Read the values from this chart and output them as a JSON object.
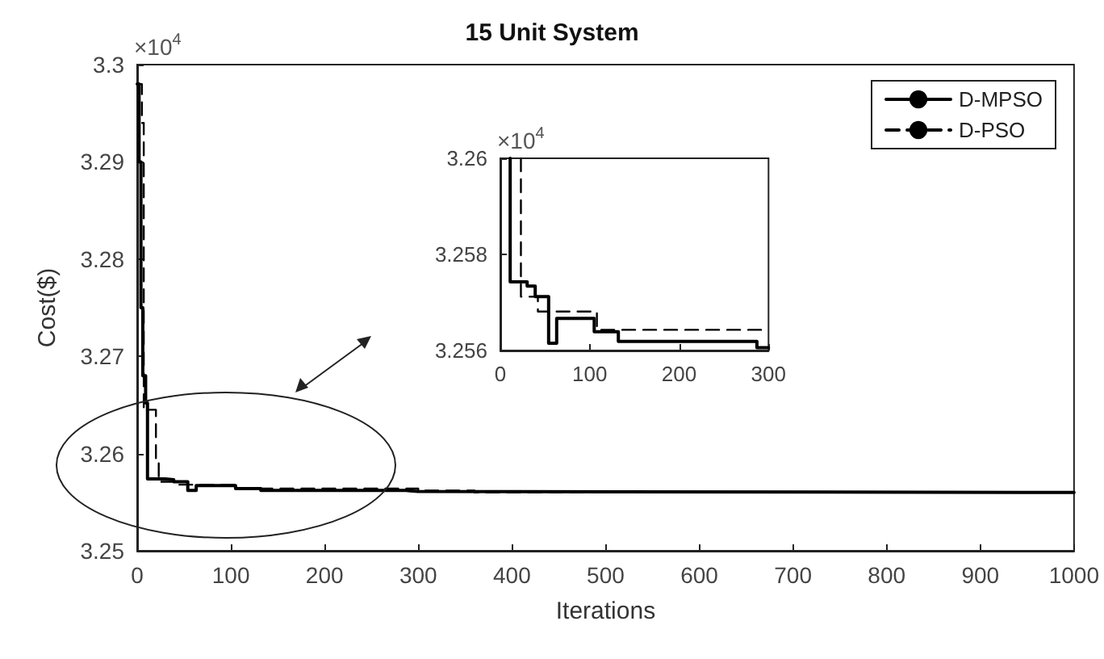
{
  "chart_data": [
    {
      "type": "step",
      "title": "15 Unit System",
      "xlabel": "Iterations",
      "ylabel": "Cost($)",
      "xlim": [
        0,
        1000
      ],
      "xticks": [
        0,
        100,
        200,
        300,
        400,
        500,
        600,
        700,
        800,
        900,
        1000
      ],
      "ylim": [
        3.25,
        3.3
      ],
      "yticks": [
        3.25,
        3.26,
        3.27,
        3.28,
        3.29,
        3.3
      ],
      "annotations": [
        "×10$^{4}$"
      ],
      "legend": "top right",
      "grid": false,
      "series": [
        {
          "name": "D-MPSO",
          "color": "#000000",
          "line_style": "solid",
          "x": [
            0,
            2,
            4,
            6,
            9,
            11,
            30,
            39,
            54,
            63,
            105,
            132,
            287,
            300,
            1000
          ],
          "values": [
            3.298,
            3.29,
            3.275,
            3.268,
            3.2652,
            3.2574,
            3.2573,
            3.2571,
            3.2562,
            3.2567,
            3.2564,
            3.2562,
            3.2561,
            3.256,
            3.256
          ]
        },
        {
          "name": "D-PSO",
          "color": "#000000",
          "line_style": "dashed",
          "x": [
            2,
            5,
            7,
            20,
            23,
            42,
            108,
            300,
            360,
            1000
          ],
          "values": [
            3.298,
            3.294,
            3.2645,
            3.2595,
            3.2571,
            3.2568,
            3.2564,
            3.2562,
            3.256,
            3.256
          ]
        }
      ]
    },
    {
      "type": "step",
      "xlim": [
        0,
        300
      ],
      "xticks": [
        0,
        100,
        200,
        300
      ],
      "ylim": [
        3.256,
        3.26
      ],
      "yticks": [
        3.256,
        3.258,
        3.26
      ],
      "annotations": [
        "×10$^{4}$"
      ],
      "legend": false,
      "grid": false,
      "series": [
        {
          "color": "#000000",
          "line_style": "solid",
          "x": [
            11,
            11,
            30,
            39,
            54,
            63,
            105,
            132,
            287,
            300
          ],
          "values": [
            3.26,
            3.25743,
            3.25734,
            3.25712,
            3.25615,
            3.25667,
            3.25639,
            3.25619,
            3.25606,
            3.25606
          ]
        },
        {
          "color": "#000000",
          "line_style": "dashed",
          "x": [
            23,
            23,
            42,
            108,
            300
          ],
          "values": [
            3.26,
            3.25712,
            3.25681,
            3.25643,
            3.25643
          ]
        }
      ]
    }
  ]
}
